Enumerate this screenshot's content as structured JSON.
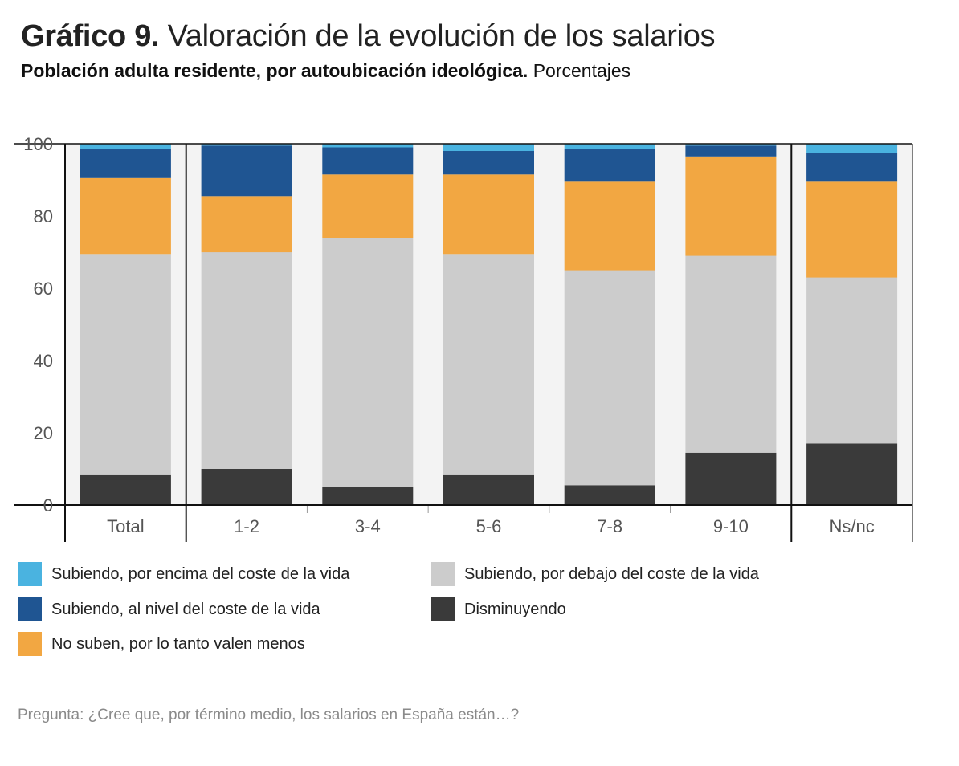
{
  "header": {
    "title_bold": "Gráfico 9.",
    "title_rest": "Valoración de la evolución de los salarios",
    "subtitle_bold": "Población adulta residente, por autoubicación ideológica.",
    "subtitle_rest": "Porcentajes"
  },
  "chart_data": {
    "type": "bar",
    "stacked": true,
    "categories": [
      "Total",
      "1-2",
      "3-4",
      "5-6",
      "7-8",
      "9-10",
      "Ns/nc"
    ],
    "ylim": [
      0,
      100
    ],
    "yticks": [
      "0",
      "20",
      "40",
      "60",
      "80",
      "100"
    ],
    "series": [
      {
        "name": "Disminuyendo",
        "color": "#3a3a3a",
        "values": [
          8.5,
          10,
          5,
          8.5,
          5.5,
          14.5,
          17
        ]
      },
      {
        "name": "Subiendo, por debajo del coste de la vida",
        "color": "#cccccc",
        "values": [
          61,
          60,
          69,
          61,
          59.5,
          54.5,
          46
        ]
      },
      {
        "name": "No suben, por lo tanto valen menos",
        "color": "#f2a742",
        "values": [
          21,
          15.5,
          17.5,
          22,
          24.5,
          27.5,
          26.5
        ]
      },
      {
        "name": "Subiendo, al nivel del coste de la vida",
        "color": "#1f5592",
        "values": [
          8,
          14,
          7.5,
          6.5,
          9,
          3,
          8
        ]
      },
      {
        "name": "Subiendo, por encima del coste de la vida",
        "color": "#4ab3e0",
        "values": [
          1.5,
          0.5,
          1,
          2,
          1.5,
          0.5,
          2.5
        ]
      }
    ]
  },
  "legend": {
    "items": [
      {
        "label": "Subiendo, por encima del coste de la vida",
        "color": "#4ab3e0"
      },
      {
        "label": "Subiendo, por debajo del coste de la vida",
        "color": "#cccccc"
      },
      {
        "label": "Subiendo, al nivel del coste de la vida",
        "color": "#1f5592"
      },
      {
        "label": "Disminuyendo",
        "color": "#3a3a3a"
      },
      {
        "label": "No suben, por lo tanto valen menos",
        "color": "#f2a742"
      }
    ]
  },
  "note": "Pregunta: ¿Cree que, por término medio, los salarios en España están…?"
}
